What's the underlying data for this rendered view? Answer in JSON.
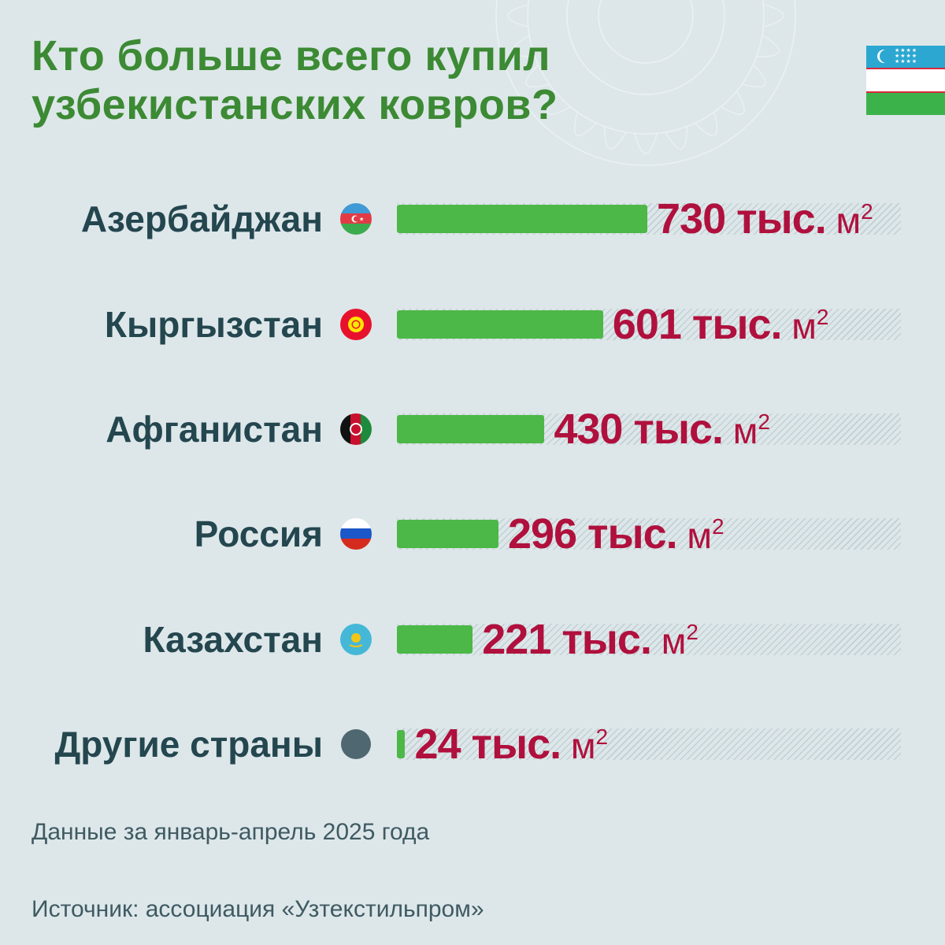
{
  "title_line1": "Кто больше всего купил",
  "title_line2": "узбекистанских ковров?",
  "accent_color": "#3c8a34",
  "bar_color": "#4cb847",
  "value_color": "#b0103d",
  "header_flag_icon": "uzbekistan-flag-icon",
  "chart_data": {
    "type": "bar",
    "orientation": "horizontal",
    "categories": [
      "Азербайджан",
      "Кыргызстан",
      "Афганистан",
      "Россия",
      "Казахстан",
      "Другие страны"
    ],
    "values": [
      730,
      601,
      430,
      296,
      221,
      24
    ],
    "value_labels": [
      "730 тыс.",
      "601 тыс.",
      "430 тыс.",
      "296 тыс.",
      "221 тыс.",
      "24 тыс."
    ],
    "unit": "м",
    "unit_exponent": "2",
    "flag_icons": [
      "azerbaijan-flag-icon",
      "kyrgyzstan-flag-icon",
      "afghanistan-flag-icon",
      "russia-flag-icon",
      "kazakhstan-flag-icon",
      "grey-dot-icon"
    ],
    "xlim": [
      0,
      730
    ],
    "grid": false,
    "legend": "none"
  },
  "note_period": "Данные за январь-апрель 2025 года",
  "note_source": "Источник: ассоциация «Узтекстильпром»"
}
